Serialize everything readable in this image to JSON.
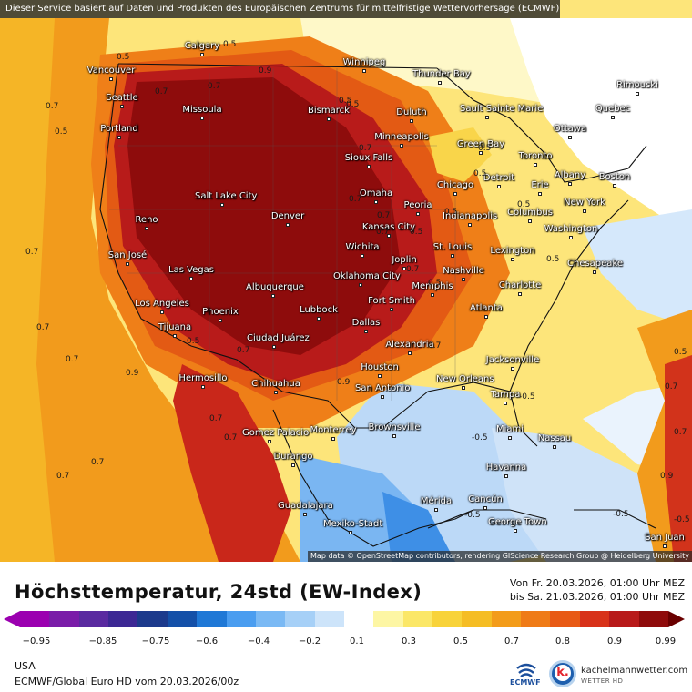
{
  "banner": "Dieser Service basiert auf Daten und Produkten des Europäischen Zentrums für mittelfristige Wettervorhersage (ECMWF)",
  "attribution": "Map data © OpenStreetMap contributors, rendering GIScience Research Group @ Heidelberg University",
  "title": "Höchsttemperatur, 24std (EW-Index)",
  "period": {
    "from": "Von Fr. 20.03.2026, 01:00 Uhr MEZ",
    "to": "bis Sa. 21.03.2026, 01:00 Uhr MEZ"
  },
  "region": "USA",
  "model": "ECMWF/Global Euro HD vom  20.03.2026/00z",
  "logos": {
    "ecmwf": "ECMWF",
    "kachelmann_name": "kachelmannwetter.com",
    "kachelmann_sub": "WETTER HD",
    "kachelmann_mark": "k."
  },
  "scale": {
    "colors": [
      "#9b00b0",
      "#7a1ca8",
      "#5a2aa0",
      "#3c2894",
      "#1c3a8c",
      "#1450a8",
      "#1f78d6",
      "#4a9df0",
      "#7ab9f4",
      "#a6d0f7",
      "#cde4fa",
      "#ffffff",
      "#fdf6a4",
      "#fbe767",
      "#f8d33a",
      "#f5bd24",
      "#f39c1a",
      "#ef7b17",
      "#e85a15",
      "#d8321a",
      "#b81a1a",
      "#8f0b0b"
    ],
    "ticks": [
      "−0.95",
      "−0.85",
      "−0.75",
      "−0.6",
      "−0.4",
      "−0.2",
      "0.1",
      "0.3",
      "0.5",
      "0.7",
      "0.8",
      "0.9",
      "0.99"
    ]
  },
  "cities": [
    "Winnipeg",
    "Thunder Bay",
    "Rimouski",
    "Calgary",
    "Vancouver",
    "Seattle",
    "Missoula",
    "Portland",
    "Bismarck",
    "Duluth",
    "Sault Sainte Marie",
    "Quebec",
    "Ottawa",
    "Minneapolis",
    "Green Bay",
    "Toronto",
    "Sioux Falls",
    "Detroit",
    "Albany",
    "Boston",
    "Erie",
    "Chicago",
    "New York",
    "Omaha",
    "Salt Lake City",
    "Reno",
    "Denver",
    "Peoria",
    "Indianapolis",
    "Columbus",
    "Washington",
    "Kansas City",
    "St. Louis",
    "Lexington",
    "San José",
    "Wichita",
    "Joplin",
    "Las Vegas",
    "Nashville",
    "Chesapeake",
    "Oklahoma City",
    "Memphis",
    "Albuquerque",
    "Charlotte",
    "Fort Smith",
    "Los Angeles",
    "Phoenix",
    "Lubbock",
    "Atlanta",
    "Tijuana",
    "Dallas",
    "Ciudad Juárez",
    "Alexandria",
    "Jacksonville",
    "Houston",
    "Hermosillo",
    "Chihuahua",
    "San Antonio",
    "New Orleans",
    "Tampa",
    "Brownsville",
    "Miami",
    "Monterrey",
    "Gomez Palacio",
    "Nassau",
    "Durango",
    "Havanna",
    "Mérida",
    "Cancún",
    "Guadalajara",
    "Mexiko-Stadt",
    "George Town",
    "San Juan"
  ],
  "isolines": [
    "0.5",
    "0.5",
    "0.5",
    "0.7",
    "0.7",
    "0.5",
    "0.7",
    "0.9",
    "0.9",
    "0.7",
    "0.7",
    "0.5",
    "0.7",
    "0.9",
    "0.7",
    "0.5",
    "0.7",
    "0.7",
    "0.7",
    "0.5",
    "0.5",
    "0.7",
    "0.7",
    "0.5",
    "0.7",
    "0.5",
    "0.7",
    "0.5",
    "0.5",
    "0.7",
    "0.5",
    "0.7",
    "0.7",
    "-0.5",
    "-0.5",
    "-0.5",
    "-0.5",
    "-0.5",
    "0.5",
    "0.7",
    "0.7",
    "0.9"
  ]
}
